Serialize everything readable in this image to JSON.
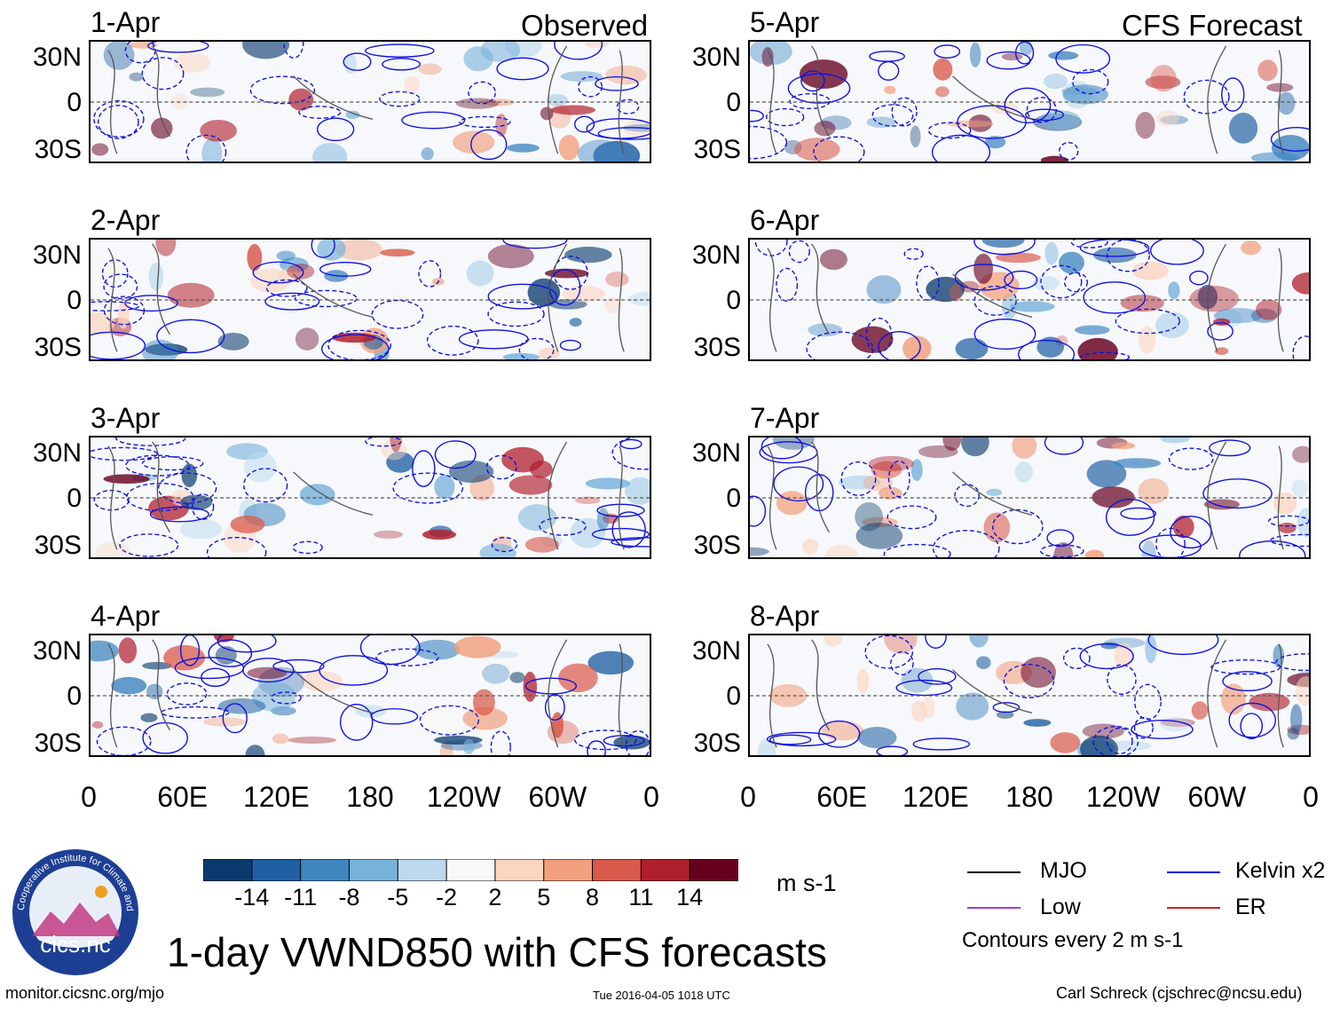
{
  "figure": {
    "title": "1-day VWND850 with CFS forecasts",
    "left_column_title": "Observed",
    "right_column_title": "CFS Forecast",
    "url": "monitor.cicsnc.org/mjo",
    "timestamp": "Tue 2016-04-05 1018 UTC",
    "credit": "Carl Schreck (cjschrec@ncsu.edu)",
    "logo_text": "cics.nc",
    "logo_ring_text": "Cooperative Institute for Climate and Satellites"
  },
  "legend": {
    "mjo": "MJO",
    "low": "Low",
    "kelvin": "Kelvin x2",
    "er": "ER",
    "contours_note": "Contours every 2 m s-1",
    "colors": {
      "mjo": "#000000",
      "low": "#a040d0",
      "kelvin": "#1010e0",
      "er": "#d02020"
    }
  },
  "colorbar": {
    "units": "m s-1",
    "labels": [
      "-14",
      "-11",
      "-8",
      "-5",
      "-2",
      "2",
      "5",
      "8",
      "11",
      "14"
    ],
    "colors": [
      "#0b3b6e",
      "#1f5fa3",
      "#3f85c0",
      "#78b1da",
      "#bcd9ee",
      "#f8f8f8",
      "#fbd5c0",
      "#f2a07d",
      "#d9594a",
      "#b01f2c",
      "#67001f"
    ]
  },
  "chart_data": {
    "type": "heatmap",
    "variable": "850-hPa meridional wind (VWND850)",
    "units": "m s-1",
    "y_tick_labels": [
      "30N",
      "0",
      "30S"
    ],
    "x_tick_labels": [
      "0",
      "60E",
      "120E",
      "180",
      "120W",
      "60W",
      "0"
    ],
    "ylim": [
      -40,
      40
    ],
    "xlim": [
      0,
      360
    ],
    "panels": [
      {
        "date": "1-Apr",
        "source": "Observed"
      },
      {
        "date": "2-Apr",
        "source": "Observed"
      },
      {
        "date": "3-Apr",
        "source": "Observed"
      },
      {
        "date": "4-Apr",
        "source": "Observed"
      },
      {
        "date": "5-Apr",
        "source": "CFS Forecast"
      },
      {
        "date": "6-Apr",
        "source": "CFS Forecast"
      },
      {
        "date": "7-Apr",
        "source": "CFS Forecast"
      },
      {
        "date": "8-Apr",
        "source": "CFS Forecast"
      }
    ]
  }
}
